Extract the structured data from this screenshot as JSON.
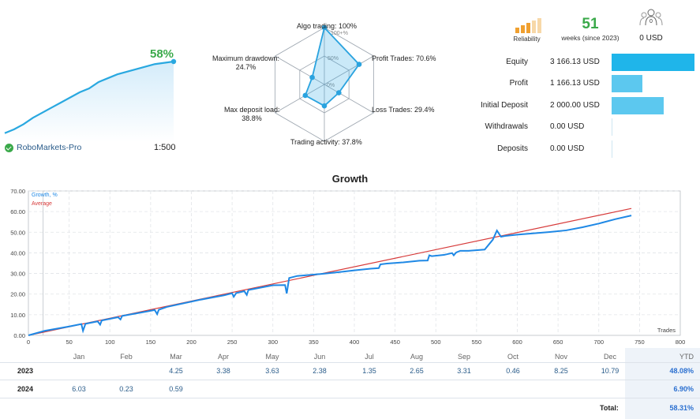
{
  "summary": {
    "growth_percent": "58%",
    "broker": "RoboMarkets-Pro",
    "leverage": "1:500",
    "sparkline": [
      2,
      5,
      9,
      14,
      18,
      22,
      26,
      30,
      34,
      37,
      42,
      45,
      48,
      50,
      52,
      54,
      56,
      57,
      58
    ]
  },
  "radar": {
    "labels": {
      "algo": "Algo trading: 100%",
      "profit": "Profit Trades: 70.6%",
      "loss": "Loss Trades: 29.4%",
      "activity": "Trading activity: 37.8%",
      "deposit_load_1": "Max deposit load:",
      "deposit_load_2": "38.8%",
      "drawdown_1": "Maximum drawdown:",
      "drawdown_2": "24.7%"
    },
    "ring_labels": [
      "100+%",
      "50%",
      "0%"
    ],
    "values": [
      100,
      70.6,
      29.4,
      37.8,
      38.8,
      24.7
    ]
  },
  "header": {
    "reliability_label": "Reliability",
    "weeks": "51",
    "weeks_label": "weeks (since 2023)",
    "subscribers_value": "0 USD",
    "reliability_colors": [
      "#f0a030",
      "#f0a030",
      "#f0a030",
      "#f7d8a8",
      "#f7d8a8"
    ]
  },
  "stats": [
    {
      "label": "Equity",
      "value": "3 166.13 USD",
      "bar": 3166.13,
      "color": "#1fb5ea"
    },
    {
      "label": "Profit",
      "value": "1 166.13 USD",
      "bar": 1166.13,
      "color": "#5cc8ef"
    },
    {
      "label": "Initial Deposit",
      "value": "2 000.00 USD",
      "bar": 2000.0,
      "color": "#5cc8ef"
    },
    {
      "label": "Withdrawals",
      "value": "0.00 USD",
      "bar": 0,
      "color": "#5cc8ef"
    },
    {
      "label": "Deposits",
      "value": "0.00 USD",
      "bar": 0,
      "color": "#5cc8ef"
    }
  ],
  "chart_title": "Growth",
  "chart_data": {
    "type": "line",
    "title": "Growth",
    "xlabel": "Trades",
    "ylabel": "",
    "xlim": [
      0,
      800
    ],
    "ylim": [
      0,
      70
    ],
    "x_ticks": [
      "0",
      "50",
      "100",
      "150",
      "200",
      "250",
      "300",
      "350",
      "400",
      "450",
      "500",
      "550",
      "600",
      "650",
      "700",
      "750",
      "800"
    ],
    "y_ticks": [
      "0.00",
      "10.00",
      "20.00",
      "30.00",
      "40.00",
      "50.00",
      "60.00",
      "70.00"
    ],
    "grid": true,
    "legend": "top-left",
    "series": [
      {
        "name": "Growth, %",
        "color": "#1e88e5",
        "x": [
          0,
          20,
          50,
          65,
          67,
          70,
          85,
          88,
          90,
          110,
          113,
          115,
          140,
          155,
          158,
          160,
          170,
          210,
          240,
          250,
          252,
          255,
          265,
          268,
          270,
          300,
          315,
          317,
          320,
          330,
          360,
          380,
          400,
          420,
          430,
          432,
          440,
          460,
          480,
          490,
          492,
          495,
          510,
          520,
          522,
          525,
          530,
          540,
          560,
          570,
          575,
          580,
          585,
          600,
          640,
          660,
          680,
          700,
          720,
          740
        ],
        "y": [
          0,
          2.2,
          4.3,
          5.5,
          2.2,
          5.6,
          6.8,
          5.2,
          7.2,
          8.8,
          7.7,
          9.4,
          11.2,
          12.3,
          10.3,
          12.4,
          13.8,
          17.2,
          19.4,
          20.4,
          18.7,
          20.5,
          21.4,
          19.6,
          22.0,
          24.3,
          24.4,
          20.3,
          27.8,
          28.8,
          29.8,
          30.6,
          31.5,
          32.3,
          32.6,
          34.4,
          34.8,
          35.4,
          36.2,
          36.3,
          38.8,
          38.4,
          39.0,
          39.9,
          38.8,
          40.2,
          41.0,
          41.0,
          41.6,
          46.4,
          50.8,
          47.8,
          48.2,
          48.8,
          50.1,
          50.9,
          52.4,
          54.2,
          56.3,
          58.1
        ]
      },
      {
        "name": "Average",
        "color": "#d63a3a",
        "x": [
          0,
          740
        ],
        "y": [
          0,
          61.5
        ]
      }
    ]
  },
  "table": {
    "months": [
      "Jan",
      "Feb",
      "Mar",
      "Apr",
      "May",
      "Jun",
      "Jul",
      "Aug",
      "Sep",
      "Oct",
      "Nov",
      "Dec"
    ],
    "ytd_label": "YTD",
    "rows": [
      {
        "year": "2023",
        "values": [
          "",
          "",
          "4.25",
          "3.38",
          "3.63",
          "2.38",
          "1.35",
          "2.65",
          "3.31",
          "0.46",
          "8.25",
          "10.79"
        ],
        "ytd": "48.08%"
      },
      {
        "year": "2024",
        "values": [
          "6.03",
          "0.23",
          "0.59",
          "",
          "",
          "",
          "",
          "",
          "",
          "",
          "",
          ""
        ],
        "ytd": "6.90%"
      }
    ],
    "total_label": "Total:",
    "total_value": "58.31%"
  }
}
